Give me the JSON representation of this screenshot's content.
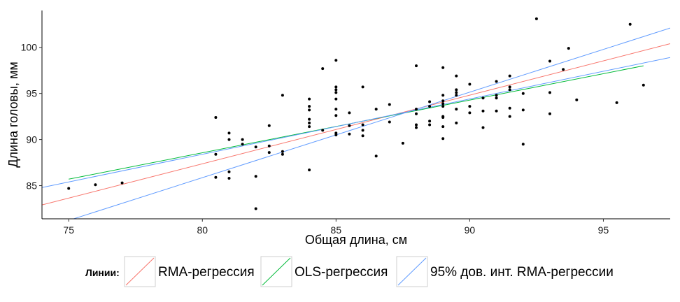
{
  "chart_data": {
    "type": "scatter",
    "xlabel": "Общая длина, см",
    "ylabel": "Длина головы, мм",
    "xlim": [
      74,
      97.5
    ],
    "ylim": [
      81.4,
      104
    ],
    "x_ticks": [
      75,
      80,
      85,
      90,
      95
    ],
    "y_ticks": [
      85,
      90,
      95,
      100
    ],
    "grid": false,
    "legend_position": "bottom",
    "legend_title": "Линии:",
    "points": [
      [
        75,
        84.7
      ],
      [
        76,
        85.1
      ],
      [
        77,
        85.3
      ],
      [
        80.5,
        92.4
      ],
      [
        80.5,
        88.4
      ],
      [
        80.5,
        85.9
      ],
      [
        81,
        90.7
      ],
      [
        81,
        90.0
      ],
      [
        81,
        86.5
      ],
      [
        81,
        85.8
      ],
      [
        81.5,
        90.0
      ],
      [
        81.5,
        89.5
      ],
      [
        82,
        89.2
      ],
      [
        82,
        86.0
      ],
      [
        82,
        82.5
      ],
      [
        82.5,
        91.5
      ],
      [
        82.5,
        89.3
      ],
      [
        82.5,
        88.6
      ],
      [
        83,
        94.8
      ],
      [
        83,
        88.7
      ],
      [
        83,
        88.4
      ],
      [
        84,
        94.4
      ],
      [
        84,
        93.6
      ],
      [
        84,
        93.2
      ],
      [
        84,
        92.2
      ],
      [
        84,
        91.8
      ],
      [
        84,
        91.4
      ],
      [
        84,
        86.7
      ],
      [
        84.5,
        97.7
      ],
      [
        84.5,
        91.0
      ],
      [
        85,
        98.6
      ],
      [
        85,
        95.7
      ],
      [
        85,
        95.4
      ],
      [
        85,
        95.1
      ],
      [
        85,
        94.4
      ],
      [
        85,
        93.3
      ],
      [
        85,
        92.6
      ],
      [
        85,
        90.7
      ],
      [
        85,
        90.5
      ],
      [
        85.5,
        92.9
      ],
      [
        85.5,
        91.5
      ],
      [
        85.5,
        90.6
      ],
      [
        86,
        95.7
      ],
      [
        86,
        91.6
      ],
      [
        86,
        91.0
      ],
      [
        86,
        90.4
      ],
      [
        86.5,
        93.3
      ],
      [
        86.5,
        88.2
      ],
      [
        87,
        93.8
      ],
      [
        87,
        91.9
      ],
      [
        87.5,
        89.6
      ],
      [
        88,
        98.0
      ],
      [
        88,
        93.3
      ],
      [
        88,
        92.8
      ],
      [
        88,
        91.6
      ],
      [
        88,
        91.3
      ],
      [
        88.5,
        94.1
      ],
      [
        88.5,
        93.6
      ],
      [
        88.5,
        92.0
      ],
      [
        88.5,
        91.6
      ],
      [
        89,
        97.8
      ],
      [
        89,
        94.8
      ],
      [
        89,
        94.2
      ],
      [
        89,
        93.9
      ],
      [
        89,
        93.6
      ],
      [
        89,
        92.5
      ],
      [
        89,
        92.4
      ],
      [
        89,
        91.4
      ],
      [
        89,
        90.1
      ],
      [
        89.5,
        96.9
      ],
      [
        89.5,
        95.4
      ],
      [
        89.5,
        95.1
      ],
      [
        89.5,
        94.8
      ],
      [
        89.5,
        93.3
      ],
      [
        89.5,
        91.8
      ],
      [
        90,
        96.0
      ],
      [
        90,
        93.6
      ],
      [
        90,
        92.9
      ],
      [
        90.5,
        94.5
      ],
      [
        90.5,
        93.1
      ],
      [
        90.5,
        91.3
      ],
      [
        91,
        96.3
      ],
      [
        91,
        94.8
      ],
      [
        91,
        94.5
      ],
      [
        91,
        93.1
      ],
      [
        91.5,
        96.9
      ],
      [
        91.5,
        95.7
      ],
      [
        91.5,
        95.4
      ],
      [
        91.5,
        93.4
      ],
      [
        91.5,
        92.5
      ],
      [
        92,
        95.0
      ],
      [
        92,
        93.2
      ],
      [
        92,
        89.5
      ],
      [
        92.5,
        103.1
      ],
      [
        93,
        98.5
      ],
      [
        93,
        95.1
      ],
      [
        93,
        92.8
      ],
      [
        93.5,
        97.6
      ],
      [
        93.7,
        99.9
      ],
      [
        94,
        94.3
      ],
      [
        95.5,
        94.0
      ],
      [
        96,
        102.5
      ],
      [
        96.5,
        95.9
      ]
    ],
    "series": [
      {
        "name": "RMA-регрессия",
        "color": "#f8766d",
        "x": [
          74,
          97.5
        ],
        "y": [
          82.9,
          100.4
        ]
      },
      {
        "name": "OLS-регрессия",
        "color": "#00ba38",
        "x": [
          75,
          96.5
        ],
        "y": [
          85.7,
          98.0
        ]
      },
      {
        "name": "95% дов. инт. RMA-регрессии",
        "color": "#619cff",
        "x": [
          74,
          97.5
        ],
        "y": [
          84.8,
          98.9
        ]
      },
      {
        "name": "95% дов. инт. RMA-регрессии",
        "color": "#619cff",
        "x": [
          74,
          97.5
        ],
        "y": [
          80.3,
          102.1
        ]
      }
    ],
    "legend": [
      {
        "label": "RMA-регрессия",
        "color": "#f8766d"
      },
      {
        "label": "OLS-регрессия",
        "color": "#00ba38"
      },
      {
        "label": "95% дов. инт. RMA-регрессии",
        "color": "#619cff"
      }
    ]
  }
}
